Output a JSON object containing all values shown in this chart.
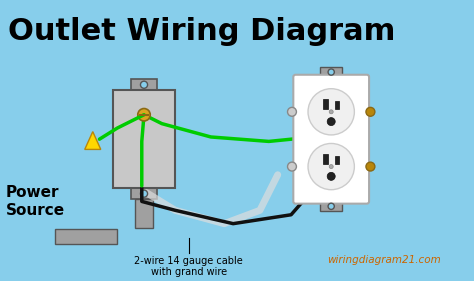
{
  "background_color": "#87CEEB",
  "title": "Outlet Wiring Diagram",
  "title_fontsize": 22,
  "title_color": "#000000",
  "title_bold": true,
  "watermark": "wiringdiagram21.com",
  "watermark_color": "#CC6600",
  "label_power": "Power\nSource",
  "label_cable": "2-wire 14 gauge cable\nwith grand wire",
  "box_color": "#A0A0A0",
  "outlet_white": "#FFFFFF",
  "wire_green": "#00CC00",
  "wire_black": "#111111",
  "wire_white_cable": "#DDDDDD",
  "screw_gold": "#DAA520",
  "screw_brass": "#B8860B"
}
